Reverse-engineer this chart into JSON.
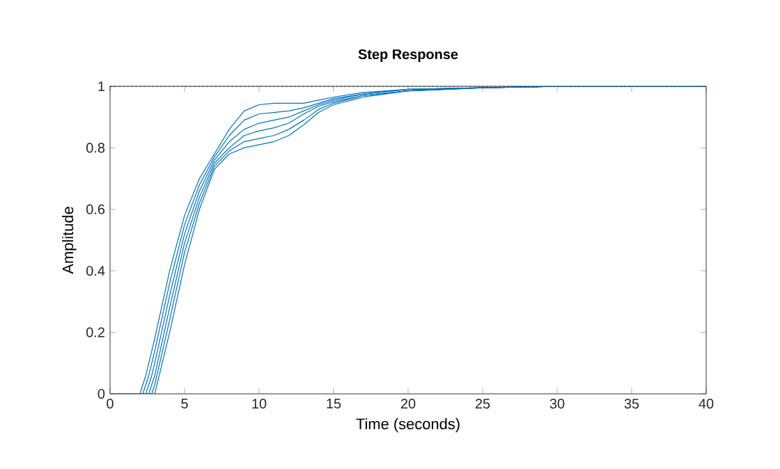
{
  "chart_data": {
    "type": "line",
    "title": "Step Response",
    "xlabel": "Time (seconds)",
    "ylabel": "Amplitude",
    "x": [
      0,
      2,
      2.2,
      2.4,
      2.6,
      2.8,
      3,
      4,
      5,
      6,
      7,
      8,
      9,
      10,
      11,
      12,
      13,
      14,
      15,
      17,
      20,
      25,
      30,
      40
    ],
    "series": [
      {
        "color": "#0072bd",
        "values": [
          0,
          0,
          0.03,
          0.06,
          0.1,
          0.14,
          0.18,
          0.4,
          0.58,
          0.7,
          0.78,
          0.86,
          0.92,
          0.94,
          0.945,
          0.945,
          0.945,
          0.955,
          0.965,
          0.98,
          0.99,
          0.995,
          1,
          1
        ]
      },
      {
        "color": "#0072bd",
        "values": [
          0,
          0,
          0,
          0.03,
          0.06,
          0.1,
          0.14,
          0.36,
          0.55,
          0.68,
          0.77,
          0.84,
          0.89,
          0.91,
          0.915,
          0.92,
          0.93,
          0.945,
          0.96,
          0.975,
          0.99,
          0.995,
          1,
          1
        ]
      },
      {
        "color": "#0072bd",
        "values": [
          0,
          0,
          0,
          0,
          0.03,
          0.06,
          0.1,
          0.32,
          0.52,
          0.66,
          0.76,
          0.82,
          0.86,
          0.88,
          0.89,
          0.9,
          0.92,
          0.94,
          0.955,
          0.975,
          0.99,
          0.995,
          1,
          1
        ]
      },
      {
        "color": "#0072bd",
        "values": [
          0,
          0,
          0,
          0,
          0,
          0.03,
          0.06,
          0.28,
          0.49,
          0.64,
          0.75,
          0.8,
          0.84,
          0.855,
          0.865,
          0.88,
          0.91,
          0.935,
          0.95,
          0.97,
          0.985,
          0.995,
          1,
          1
        ]
      },
      {
        "color": "#0072bd",
        "values": [
          0,
          0,
          0,
          0,
          0,
          0,
          0.03,
          0.24,
          0.46,
          0.62,
          0.74,
          0.79,
          0.82,
          0.83,
          0.84,
          0.86,
          0.89,
          0.925,
          0.945,
          0.97,
          0.985,
          0.995,
          1,
          1
        ]
      },
      {
        "color": "#0072bd",
        "values": [
          0,
          0,
          0,
          0,
          0,
          0,
          0,
          0.2,
          0.42,
          0.6,
          0.73,
          0.78,
          0.8,
          0.81,
          0.82,
          0.84,
          0.875,
          0.915,
          0.94,
          0.965,
          0.985,
          0.995,
          1,
          1
        ]
      }
    ],
    "xlim": [
      0,
      40
    ],
    "ylim": [
      0,
      1
    ],
    "xticks": [
      0,
      5,
      10,
      15,
      20,
      25,
      30,
      35,
      40
    ],
    "yticks": [
      0,
      0.2,
      0.4,
      0.6,
      0.8,
      1
    ],
    "ref_lines": [
      {
        "axis": "y",
        "value": 1,
        "color": "#000000",
        "line_style": "dashed"
      }
    ],
    "grid": false,
    "line_style": "solid",
    "marker": "none"
  }
}
